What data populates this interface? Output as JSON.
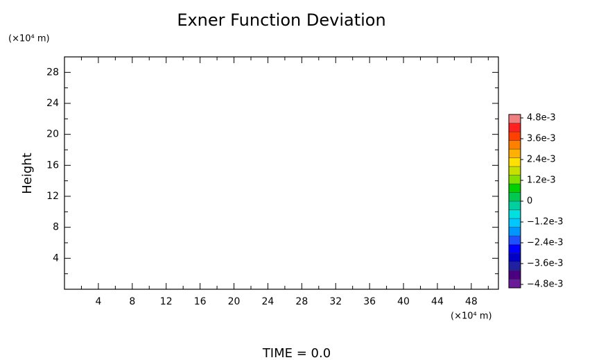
{
  "chart_data": {
    "type": "contour",
    "title": "Exner Function Deviation",
    "y_label": "Height",
    "x_unit": "(×10⁴ m)",
    "y_unit": "(×10⁴ m)",
    "footer": "TIME = 0.0",
    "xlim": [
      0,
      51.2
    ],
    "ylim": [
      0,
      30
    ],
    "xticks": [
      4,
      8,
      12,
      16,
      20,
      24,
      28,
      32,
      36,
      40,
      44,
      48
    ],
    "yticks": [
      4,
      8,
      12,
      16,
      20,
      24,
      28
    ],
    "xminorticks": [
      2,
      6,
      10,
      14,
      18,
      22,
      26,
      30,
      34,
      38,
      42,
      46,
      50
    ],
    "yminorticks": [
      2,
      6,
      10,
      14,
      18,
      22,
      26
    ],
    "colorbar": {
      "lim": [
        -0.005,
        0.005
      ],
      "ticks": [
        {
          "value": 0.0048,
          "label": "4.8e-3"
        },
        {
          "value": 0.0036,
          "label": "3.6e-3"
        },
        {
          "value": 0.0024,
          "label": "2.4e-3"
        },
        {
          "value": 0.0012,
          "label": "1.2e-3"
        },
        0,
        {
          "value": -0.0012,
          "label": "−1.2e-3"
        },
        {
          "value": -0.0024,
          "label": "−2.4e-3"
        },
        {
          "value": -0.0036,
          "label": "−3.6e-3"
        },
        {
          "value": -0.0048,
          "label": "−4.8e-3"
        }
      ],
      "colors": [
        "#6a1b9a",
        "#4b0082",
        "#2020a0",
        "#0000c8",
        "#0000ff",
        "#1e50ff",
        "#0096ff",
        "#00c8ff",
        "#00e0e0",
        "#00d0a0",
        "#00c850",
        "#00d000",
        "#80e000",
        "#c8e000",
        "#ffe000",
        "#ffb000",
        "#ff8000",
        "#ff4000",
        "#ff2020",
        "#f08080"
      ]
    }
  }
}
